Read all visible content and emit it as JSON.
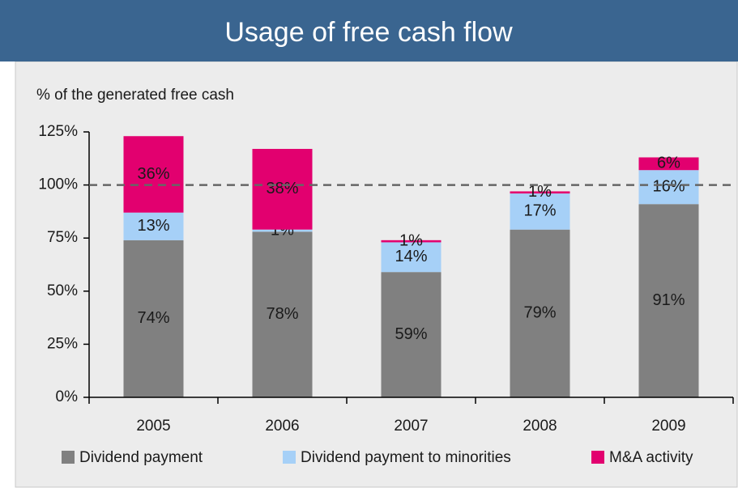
{
  "chart_data": {
    "type": "stacked_bar",
    "title": "Usage of free cash flow",
    "y_axis_label": "% of the generated free cash",
    "categories": [
      "2005",
      "2006",
      "2007",
      "2008",
      "2009"
    ],
    "series": [
      {
        "name": "Dividend payment",
        "color": "#808080",
        "values": [
          74,
          78,
          59,
          79,
          91
        ],
        "value_labels": [
          "74%",
          "78%",
          "59%",
          "79%",
          "91%"
        ]
      },
      {
        "name": "Dividend payment to minorities",
        "color": "#a6d0f7",
        "values": [
          13,
          1,
          14,
          17,
          16
        ],
        "value_labels": [
          "13%",
          "1%",
          "14%",
          "17%",
          "16%"
        ]
      },
      {
        "name": "M&A activity",
        "color": "#e2006f",
        "values": [
          36,
          38,
          1,
          1,
          6
        ],
        "value_labels": [
          "36%",
          "38%",
          "1%",
          "1%",
          "6%"
        ]
      }
    ],
    "ylim": [
      0,
      125
    ],
    "yticks": [
      {
        "value": 0,
        "label": "0%"
      },
      {
        "value": 25,
        "label": "25%"
      },
      {
        "value": 50,
        "label": "50%"
      },
      {
        "value": 75,
        "label": "75%"
      },
      {
        "value": 100,
        "label": "100%"
      },
      {
        "value": 125,
        "label": "125%"
      }
    ],
    "reference_line": {
      "value": 100,
      "color": "#666666"
    }
  }
}
